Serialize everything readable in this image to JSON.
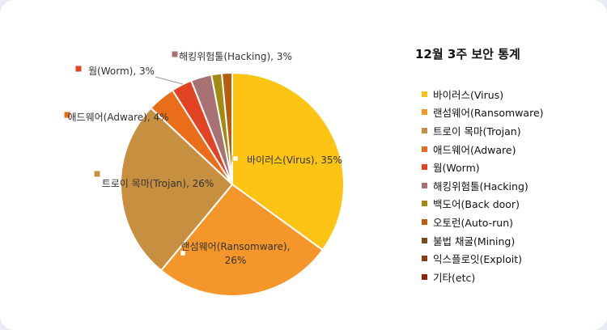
{
  "chart_data": {
    "type": "pie",
    "title": "12월 3주 보안 통계",
    "legend_position": "right",
    "slices": [
      {
        "label": "바이러스(Virus)",
        "value": 35,
        "color": "#fdc414"
      },
      {
        "label": "랜섬웨어(Ransomware)",
        "value": 26,
        "color": "#f4962a"
      },
      {
        "label": "트로이 목마(Trojan)",
        "value": 26,
        "color": "#c78f40"
      },
      {
        "label": "애드웨어(Adware)",
        "value": 4,
        "color": "#ea6e1a"
      },
      {
        "label": "웜(Worm)",
        "value": 3,
        "color": "#e14324"
      },
      {
        "label": "해킹위험툴(Hacking)",
        "value": 3,
        "color": "#a87273"
      },
      {
        "label": "백도어(Back door)",
        "value": 1.5,
        "color": "#a38a12"
      },
      {
        "label": "오토런(Auto-run)",
        "value": 1.5,
        "color": "#b85e12"
      },
      {
        "label": "불법 채굴(Mining)",
        "value": 0,
        "color": "#7a4a1a"
      },
      {
        "label": "익스플로잇(Exploit)",
        "value": 0,
        "color": "#8a3c14"
      },
      {
        "label": "기타(etc)",
        "value": 0,
        "color": "#8c2410"
      }
    ],
    "data_labels": [
      {
        "slice": 0,
        "lines": [
          "바이러스(Virus), 35%"
        ]
      },
      {
        "slice": 1,
        "lines": [
          "랜섬웨어(Ransomware),",
          "26%"
        ]
      },
      {
        "slice": 2,
        "lines": [
          "트로이 목마(Trojan), 26%"
        ]
      },
      {
        "slice": 3,
        "lines": [
          "애드웨어(Adware), 4%"
        ]
      },
      {
        "slice": 4,
        "lines": [
          "웜(Worm), 3%"
        ]
      },
      {
        "slice": 5,
        "lines": [
          "해킹위험툴(Hacking), 3%"
        ]
      }
    ]
  }
}
